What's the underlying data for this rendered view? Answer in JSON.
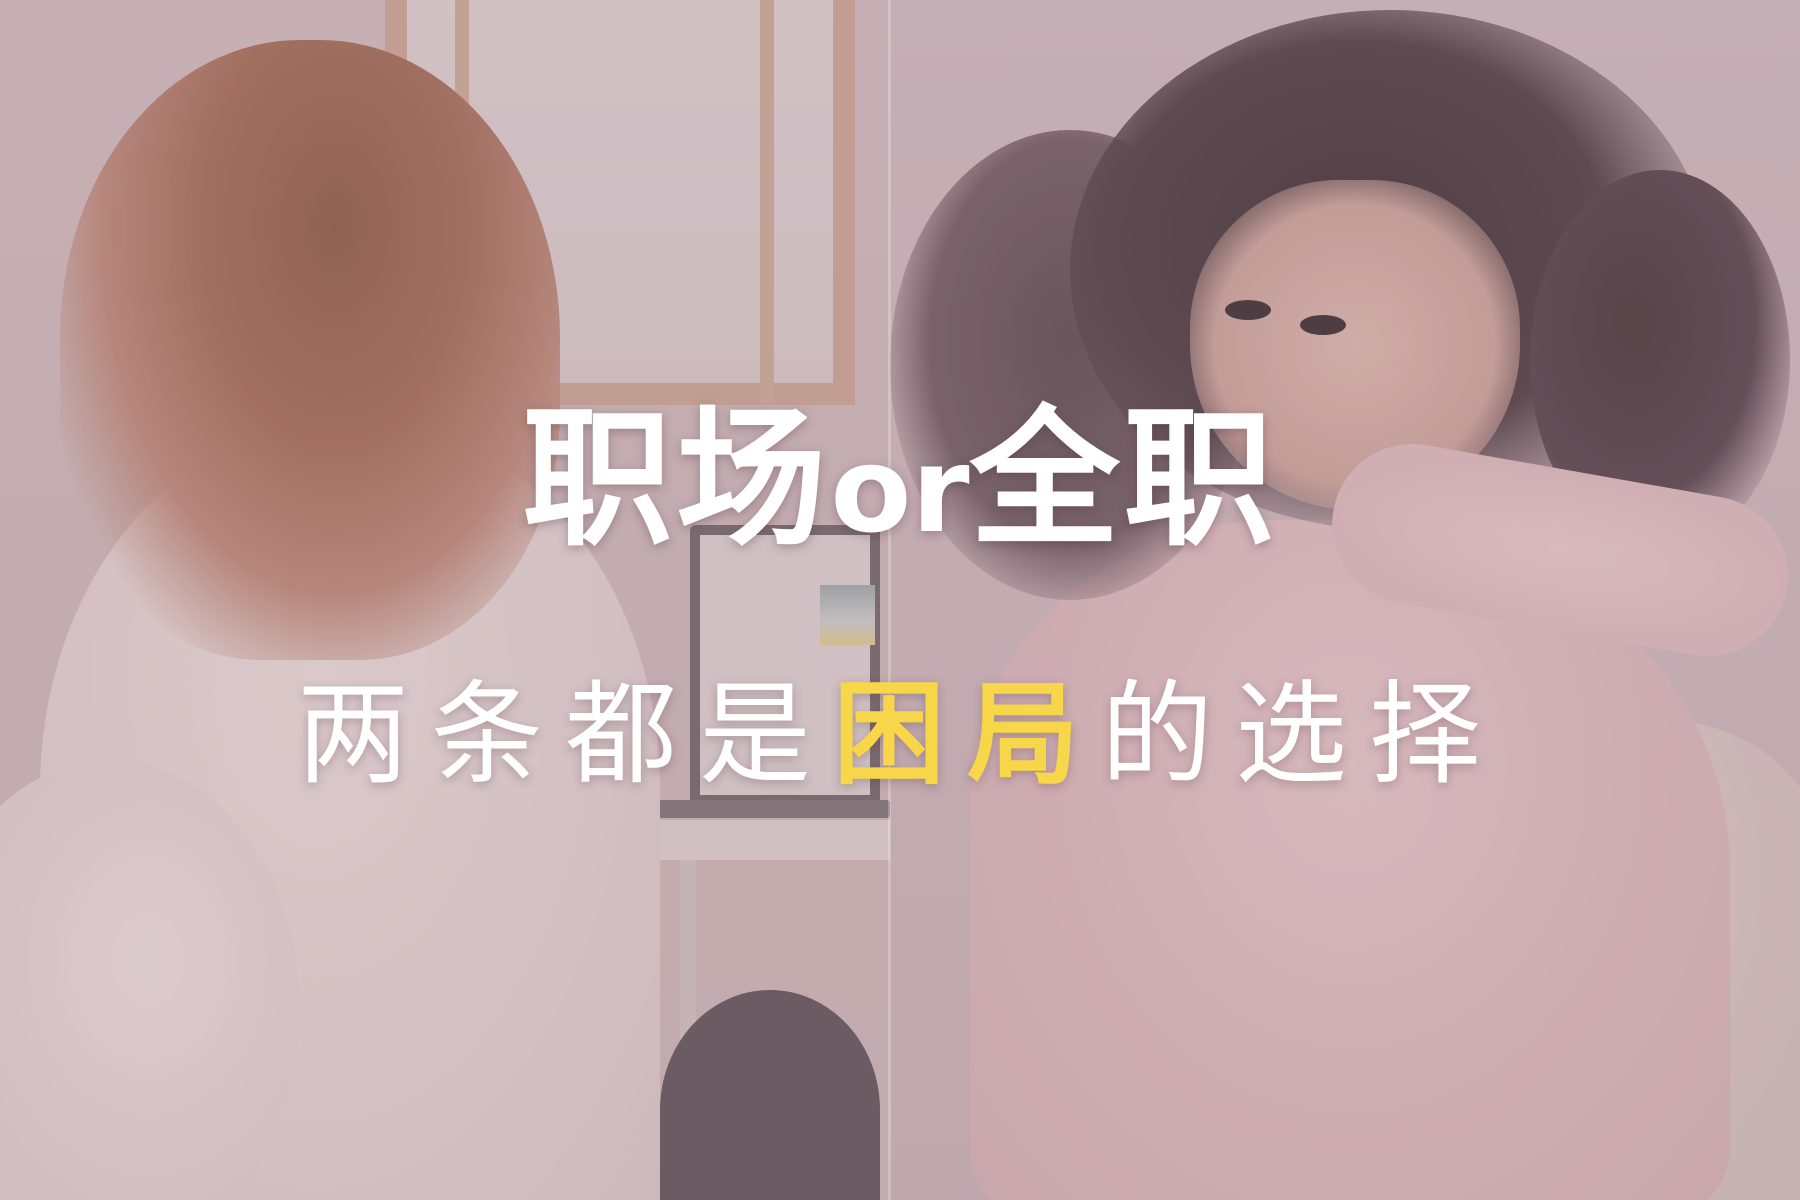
{
  "headline": {
    "part1": "职场",
    "part2": "or",
    "part3": "全职"
  },
  "subline": {
    "before": "两条都是",
    "highlight": "困局",
    "after": "的选择"
  },
  "colors": {
    "text": "#ffffff",
    "highlight": "#f7d64a"
  }
}
